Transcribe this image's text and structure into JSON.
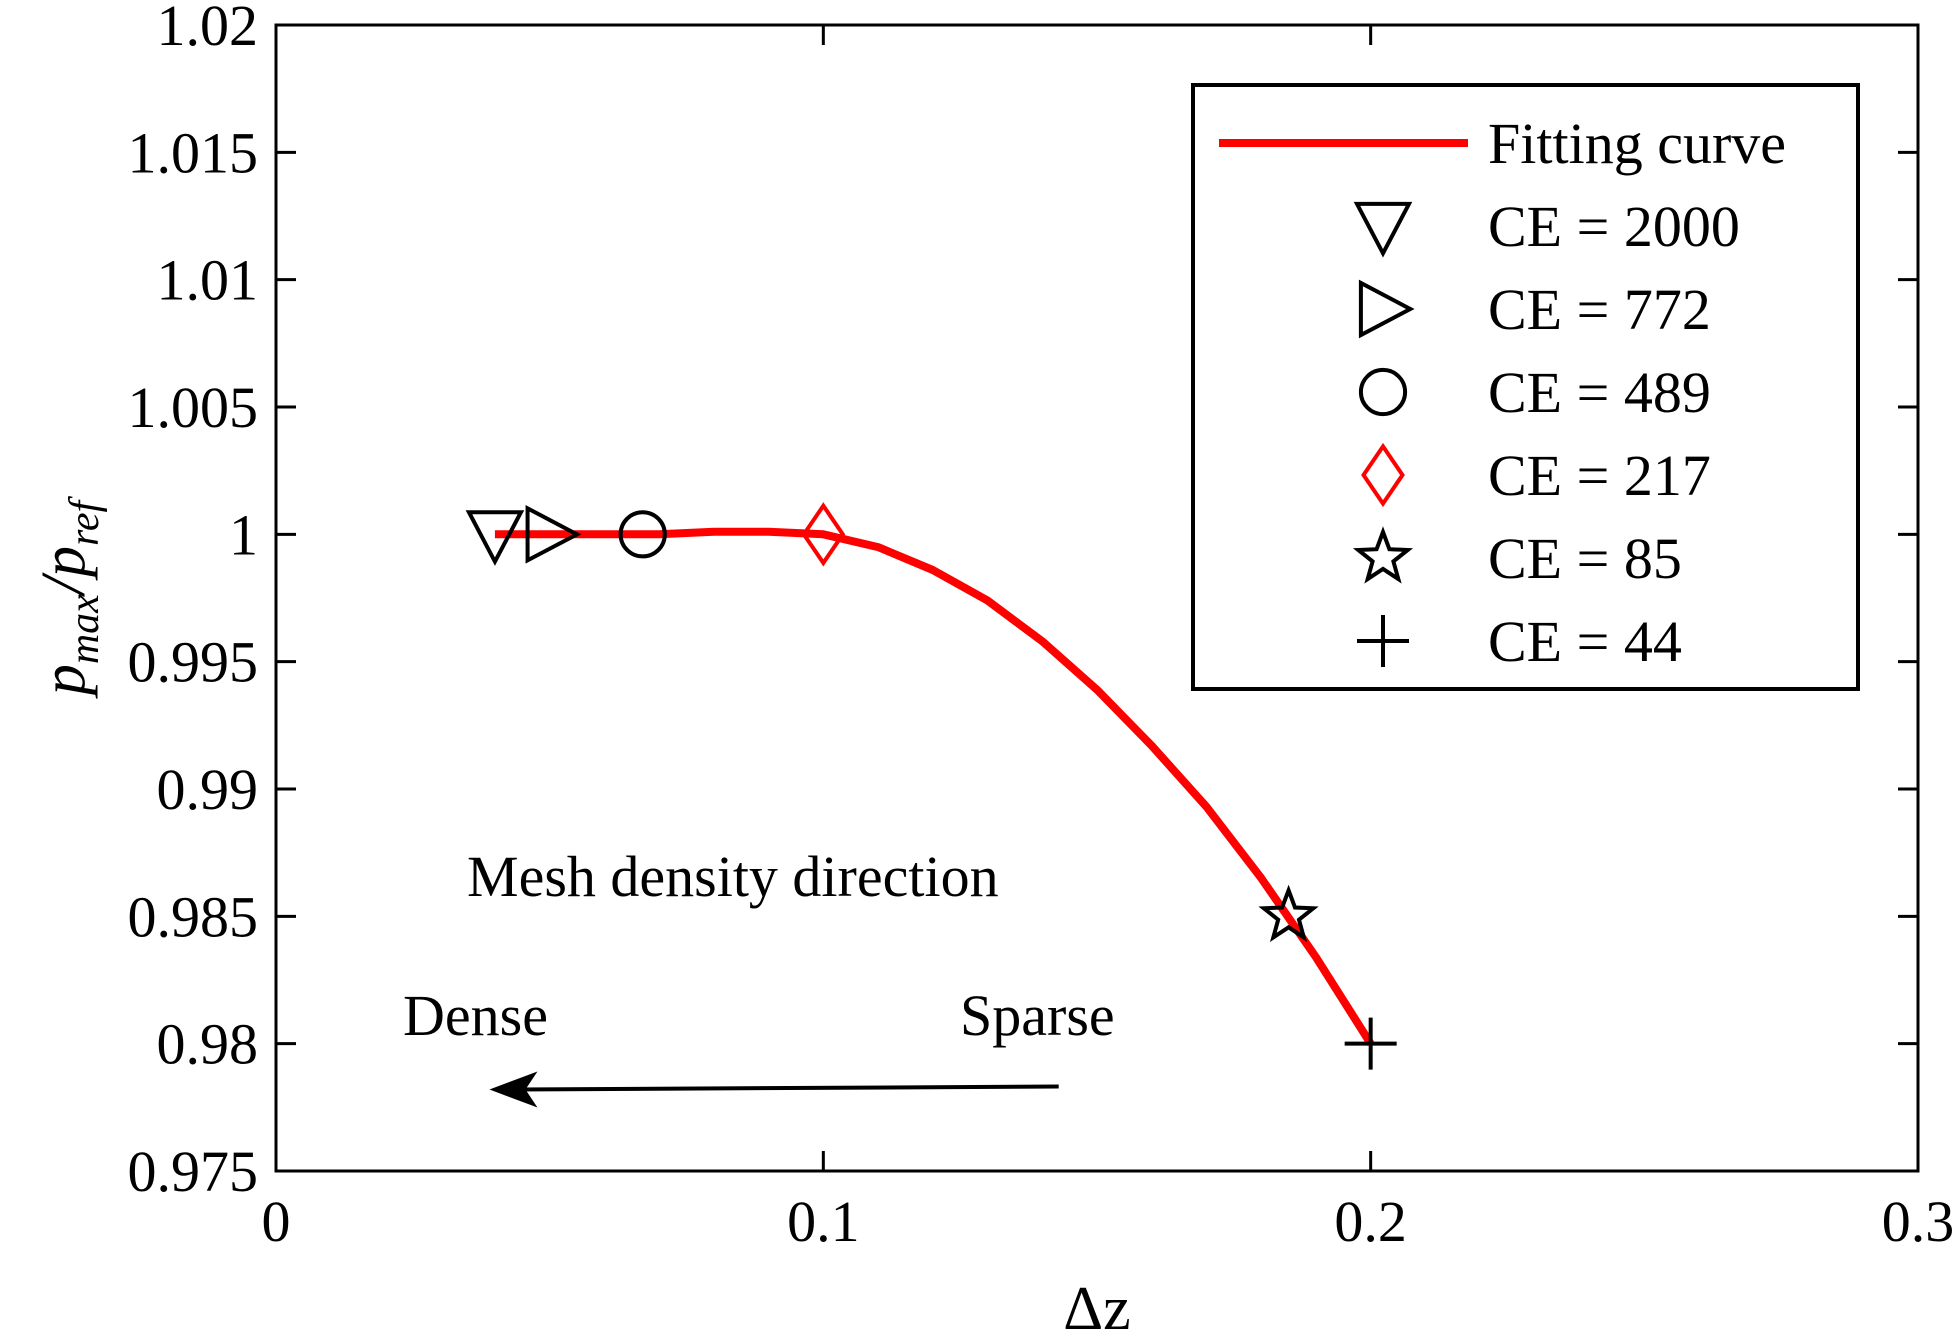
{
  "chart_data": {
    "type": "scatter",
    "xlabel": "Δz",
    "ylabel": {
      "base": "p",
      "num_sub": "max",
      "den_sub": "ref"
    },
    "xlim": [
      0,
      0.3
    ],
    "ylim": [
      0.975,
      1.02
    ],
    "x_ticks": [
      "0",
      "0.1",
      "0.2",
      "0.3"
    ],
    "x_tick_values": [
      0,
      0.1,
      0.2,
      0.3
    ],
    "y_ticks": [
      "0.975",
      "0.98",
      "0.985",
      "0.99",
      "0.995",
      "1",
      "1.005",
      "1.01",
      "1.015",
      "1.02"
    ],
    "y_tick_values": [
      0.975,
      0.98,
      0.985,
      0.99,
      0.995,
      1,
      1.005,
      1.01,
      1.015,
      1.02
    ],
    "grid": false,
    "legend_position": "top-right",
    "fitting_curve": {
      "name": "Fitting curve",
      "color": "#ff0000",
      "x": [
        0.04,
        0.05,
        0.06,
        0.07,
        0.08,
        0.09,
        0.1,
        0.11,
        0.12,
        0.13,
        0.14,
        0.15,
        0.16,
        0.17,
        0.18,
        0.19,
        0.2
      ],
      "y": [
        1.0,
        1.0,
        1.0,
        1.0,
        1.0001,
        1.0001,
        1.0,
        0.9995,
        0.9986,
        0.9974,
        0.9958,
        0.9939,
        0.9917,
        0.9893,
        0.9865,
        0.9834,
        0.98
      ]
    },
    "series": [
      {
        "name": "CE = 2000",
        "marker": "triangle-down",
        "color": "#000000",
        "x": [
          0.04
        ],
        "y": [
          1.0
        ]
      },
      {
        "name": "CE = 772",
        "marker": "triangle-right",
        "color": "#000000",
        "x": [
          0.05
        ],
        "y": [
          1.0
        ]
      },
      {
        "name": "CE = 489",
        "marker": "circle",
        "color": "#000000",
        "x": [
          0.067
        ],
        "y": [
          1.0
        ]
      },
      {
        "name": "CE = 217",
        "marker": "diamond",
        "color": "#ff0000",
        "x": [
          0.1
        ],
        "y": [
          1.0
        ]
      },
      {
        "name": "CE = 85",
        "marker": "star",
        "color": "#000000",
        "x": [
          0.185
        ],
        "y": [
          0.985
        ]
      },
      {
        "name": "CE = 44",
        "marker": "plus",
        "color": "#000000",
        "x": [
          0.2
        ],
        "y": [
          0.98
        ]
      }
    ],
    "annotations": {
      "title_text": "Mesh density direction",
      "dense": "Dense",
      "sparse": "Sparse",
      "arrow_from": {
        "x": 0.143,
        "y": 0.9782
      },
      "arrow_to": {
        "x": 0.039,
        "y": 0.9782
      }
    }
  }
}
